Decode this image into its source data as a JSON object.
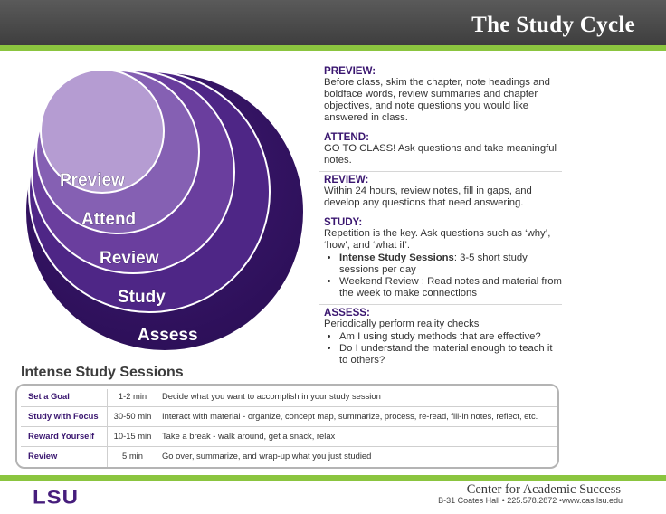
{
  "header": {
    "title": "The Study Cycle"
  },
  "cycle_labels": [
    "Preview",
    "Attend",
    "Review",
    "Study",
    "Assess"
  ],
  "colors": {
    "purple_dark": "#461d7c",
    "purple_light": "#b79ed4",
    "green": "#8bc53f"
  },
  "steps": [
    {
      "title": "PREVIEW:",
      "text": "Before class, skim the chapter, note headings and boldface words, review summaries and chapter objectives, and note questions you would like answered in class."
    },
    {
      "title": "ATTEND:",
      "text": "GO TO CLASS! Ask questions and take meaningful notes."
    },
    {
      "title": "REVIEW:",
      "text": "Within 24 hours, review notes, fill in gaps, and develop any questions that need answering."
    },
    {
      "title": "STUDY:",
      "text": "Repetition is the key.  Ask questions such as ‘why’, ‘how’, and ‘what if’.",
      "bullets": [
        {
          "bold": "Intense Study Sessions",
          "text": ":  3-5 short study sessions per day"
        },
        {
          "bold": "",
          "text": "Weekend Review :  Read notes and material from the week to make connections"
        }
      ]
    },
    {
      "title": "ASSESS:",
      "text": "Periodically perform reality checks",
      "bullets": [
        {
          "bold": "",
          "text": "Am I using study methods that are effective?"
        },
        {
          "bold": "",
          "text": "Do I understand the material enough to teach it to others?"
        }
      ]
    }
  ],
  "sessions": {
    "title": "Intense Study Sessions",
    "rows": [
      {
        "name": "Set a Goal",
        "time": "1-2 min",
        "desc": "Decide what you want to accomplish in your study session"
      },
      {
        "name": "Study with Focus",
        "time": "30-50 min",
        "desc": "Interact with material - organize, concept map, summarize, process, re-read, fill-in notes, reflect, etc."
      },
      {
        "name": "Reward Yourself",
        "time": "10-15 min",
        "desc": "Take a break - walk around, get a snack, relax"
      },
      {
        "name": "Review",
        "time": "5 min",
        "desc": "Go over, summarize, and wrap-up what you just studied"
      }
    ]
  },
  "footer": {
    "logo": "LSU",
    "org": "Center for Academic Success",
    "contact": "B-31 Coates Hall • 225.578.2872 •www.cas.lsu.edu"
  }
}
